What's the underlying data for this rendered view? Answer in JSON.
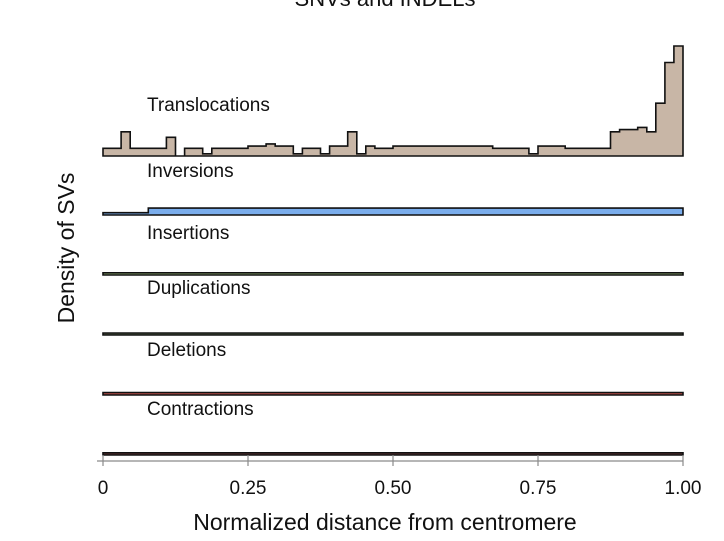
{
  "chart_data": {
    "type": "area",
    "title": "SNVs and INDELs",
    "xlabel": "Normalized distance from centromere",
    "ylabel": "Density of SVs",
    "xlim": [
      0,
      1
    ],
    "xticks": [
      {
        "value": 0,
        "label": "0"
      },
      {
        "value": 0.25,
        "label": "0.25"
      },
      {
        "value": 0.5,
        "label": "0.50"
      },
      {
        "value": 0.75,
        "label": "0.75"
      },
      {
        "value": 1,
        "label": "1.00"
      }
    ],
    "grid": false,
    "bin_width": 0.025,
    "series": [
      {
        "name": "Translocations",
        "color": "#c8b6a6",
        "values": [
          0.07,
          0.07,
          0.22,
          0.07,
          0.07,
          0.07,
          0.07,
          0.17,
          0.0,
          0.07,
          0.07,
          0.02,
          0.07,
          0.07,
          0.07,
          0.07,
          0.09,
          0.09,
          0.11,
          0.09,
          0.09,
          0.02,
          0.07,
          0.07,
          0.02,
          0.09,
          0.09,
          0.22,
          0.02,
          0.09,
          0.07,
          0.07,
          0.09,
          0.09,
          0.09,
          0.09,
          0.09,
          0.09,
          0.09,
          0.09,
          0.09,
          0.09,
          0.09,
          0.07,
          0.07,
          0.07,
          0.07,
          0.02,
          0.09,
          0.09,
          0.09,
          0.07,
          0.07,
          0.07,
          0.07,
          0.07,
          0.22,
          0.24,
          0.24,
          0.26,
          0.22,
          0.48,
          0.85,
          1.0
        ]
      },
      {
        "name": "Inversions",
        "color": "#7aadec",
        "values": [
          0.05,
          0.05,
          0.05,
          0.05,
          0.05,
          0.15,
          0.15,
          0.15,
          0.15,
          0.15,
          0.15,
          0.15,
          0.15,
          0.15,
          0.15,
          0.15,
          0.15,
          0.15,
          0.15,
          0.15,
          0.15,
          0.15,
          0.15,
          0.15,
          0.15,
          0.15,
          0.15,
          0.15,
          0.15,
          0.15,
          0.15,
          0.15,
          0.15,
          0.15,
          0.15,
          0.15,
          0.15,
          0.15,
          0.15,
          0.15,
          0.15,
          0.15,
          0.15,
          0.15,
          0.15,
          0.15,
          0.15,
          0.15,
          0.15,
          0.15,
          0.15,
          0.15,
          0.15,
          0.15,
          0.15,
          0.15,
          0.15,
          0.15,
          0.15,
          0.15,
          0.15,
          0.15,
          0.15,
          0.15
        ]
      },
      {
        "name": "Insertions",
        "color": "#9fc27d",
        "values": [
          0.05,
          0.05,
          0.05,
          0.05,
          0.05,
          0.05,
          0.05,
          0.05,
          0.05,
          0.05,
          0.05,
          0.05,
          0.05,
          0.05,
          0.05,
          0.05,
          0.05,
          0.05,
          0.05,
          0.05,
          0.05,
          0.05,
          0.05,
          0.05,
          0.05,
          0.05,
          0.05,
          0.05,
          0.05,
          0.05,
          0.05,
          0.05,
          0.05,
          0.05,
          0.05,
          0.05,
          0.05,
          0.05,
          0.05,
          0.05,
          0.05,
          0.05,
          0.05,
          0.05,
          0.05,
          0.05,
          0.05,
          0.05,
          0.05,
          0.05,
          0.05,
          0.05,
          0.05,
          0.05,
          0.05,
          0.05,
          0.05,
          0.05,
          0.05,
          0.05,
          0.05,
          0.05,
          0.05,
          0.05
        ]
      },
      {
        "name": "Duplications",
        "color": "#606f4d",
        "values": [
          0.05,
          0.05,
          0.05,
          0.05,
          0.05,
          0.05,
          0.05,
          0.05,
          0.05,
          0.05,
          0.05,
          0.05,
          0.05,
          0.05,
          0.05,
          0.05,
          0.05,
          0.05,
          0.05,
          0.05,
          0.05,
          0.05,
          0.05,
          0.05,
          0.05,
          0.05,
          0.05,
          0.05,
          0.05,
          0.05,
          0.05,
          0.05,
          0.05,
          0.05,
          0.05,
          0.05,
          0.05,
          0.05,
          0.05,
          0.05,
          0.05,
          0.05,
          0.05,
          0.05,
          0.05,
          0.05,
          0.05,
          0.05,
          0.05,
          0.05,
          0.05,
          0.05,
          0.05,
          0.05,
          0.05,
          0.05,
          0.05,
          0.05,
          0.05,
          0.05,
          0.05,
          0.05,
          0.05,
          0.05
        ]
      },
      {
        "name": "Deletions",
        "color": "#b44a45",
        "values": [
          0.05,
          0.05,
          0.05,
          0.05,
          0.05,
          0.05,
          0.05,
          0.05,
          0.05,
          0.05,
          0.05,
          0.05,
          0.05,
          0.05,
          0.05,
          0.05,
          0.05,
          0.05,
          0.05,
          0.05,
          0.05,
          0.05,
          0.05,
          0.05,
          0.05,
          0.05,
          0.05,
          0.05,
          0.05,
          0.05,
          0.05,
          0.05,
          0.05,
          0.05,
          0.05,
          0.05,
          0.05,
          0.05,
          0.05,
          0.05,
          0.05,
          0.05,
          0.05,
          0.05,
          0.05,
          0.05,
          0.05,
          0.05,
          0.05,
          0.05,
          0.05,
          0.05,
          0.05,
          0.05,
          0.05,
          0.05,
          0.05,
          0.05,
          0.05,
          0.05,
          0.05,
          0.05,
          0.05,
          0.05
        ]
      },
      {
        "name": "Contractions",
        "color": "#6e3b3a",
        "values": [
          0.05,
          0.05,
          0.05,
          0.05,
          0.05,
          0.05,
          0.05,
          0.05,
          0.05,
          0.05,
          0.05,
          0.05,
          0.05,
          0.05,
          0.05,
          0.05,
          0.05,
          0.05,
          0.05,
          0.05,
          0.05,
          0.05,
          0.05,
          0.05,
          0.05,
          0.05,
          0.05,
          0.05,
          0.05,
          0.05,
          0.05,
          0.05,
          0.05,
          0.05,
          0.05,
          0.05,
          0.05,
          0.05,
          0.05,
          0.05,
          0.05,
          0.05,
          0.05,
          0.05,
          0.05,
          0.05,
          0.05,
          0.05,
          0.05,
          0.05,
          0.05,
          0.05,
          0.05,
          0.05,
          0.05,
          0.05,
          0.05,
          0.05,
          0.05,
          0.05,
          0.05,
          0.05,
          0.05,
          0.05
        ]
      }
    ]
  }
}
